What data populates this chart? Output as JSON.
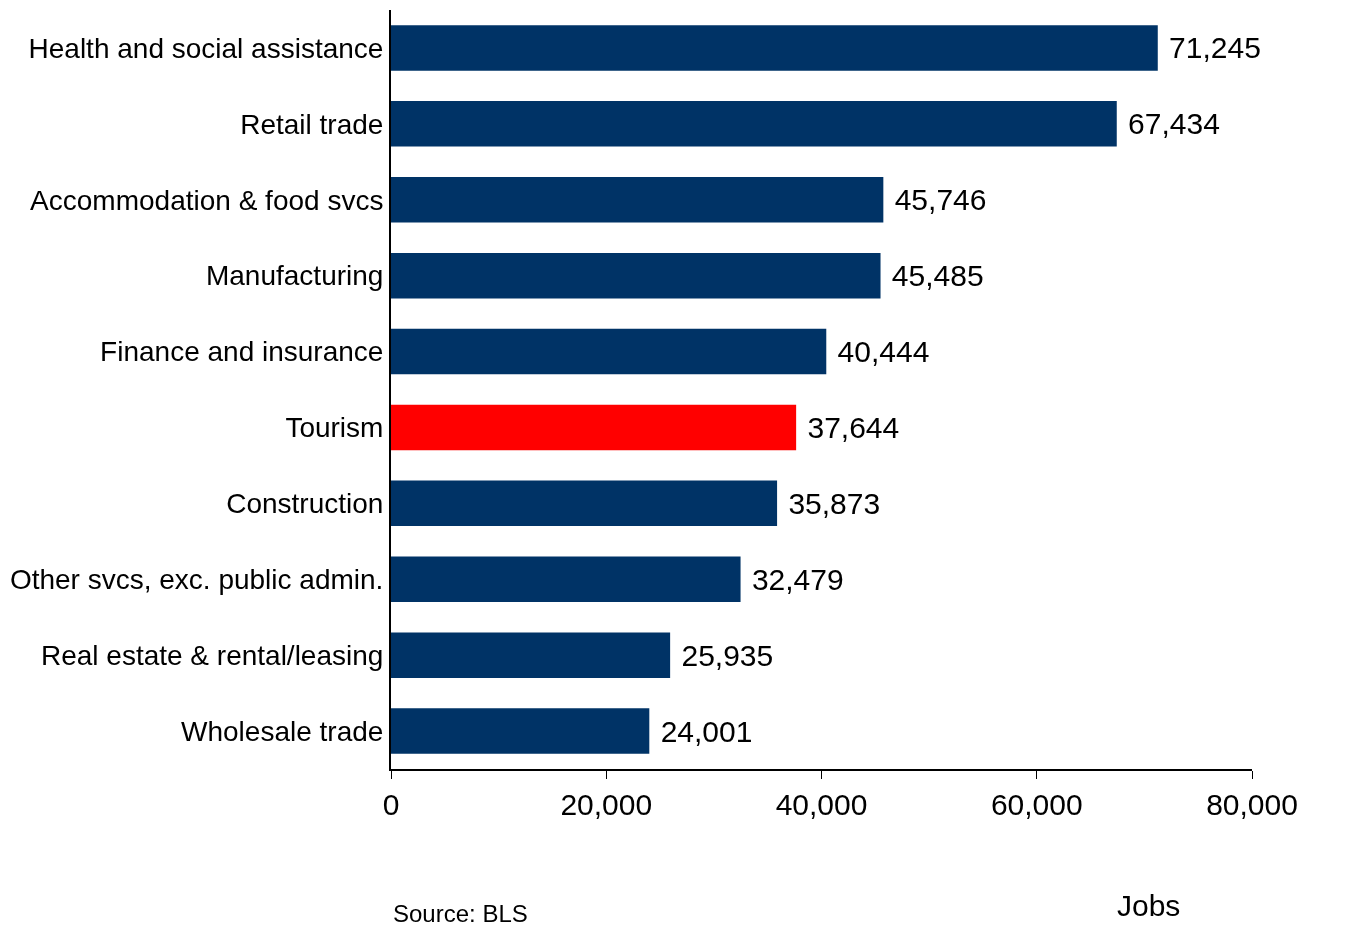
{
  "chart_data": {
    "type": "bar",
    "orientation": "horizontal",
    "categories": [
      "Health and social assistance",
      "Retail trade",
      "Accommodation & food svcs",
      "Manufacturing",
      "Finance and insurance",
      "Tourism",
      "Construction",
      "Other svcs, exc. public admin.",
      "Real estate & rental/leasing",
      "Wholesale trade"
    ],
    "values": [
      71245,
      67434,
      45746,
      45485,
      40444,
      37644,
      35873,
      32479,
      25935,
      24001
    ],
    "colors": [
      "#003366",
      "#003366",
      "#003366",
      "#003366",
      "#003366",
      "#ff0000",
      "#003366",
      "#003366",
      "#003366",
      "#003366"
    ],
    "xlim": [
      0,
      80000
    ],
    "xticks": [
      0,
      {
        "value": 20000,
        "label": "20,000"
      },
      {
        "value": 40000,
        "label": "40,000"
      },
      {
        "value": 60000,
        "label": "60,000"
      },
      {
        "value": 80000,
        "label": "80,000"
      }
    ],
    "xlabel": "Jobs",
    "annotations": [
      "Source: BLS"
    ],
    "value_labels": [
      "71,245",
      "67,434",
      "45,746",
      "45,485",
      "40,444",
      "37,644",
      "35,873",
      "32,479",
      "25,935",
      "24,001"
    ],
    "legend": false
  }
}
